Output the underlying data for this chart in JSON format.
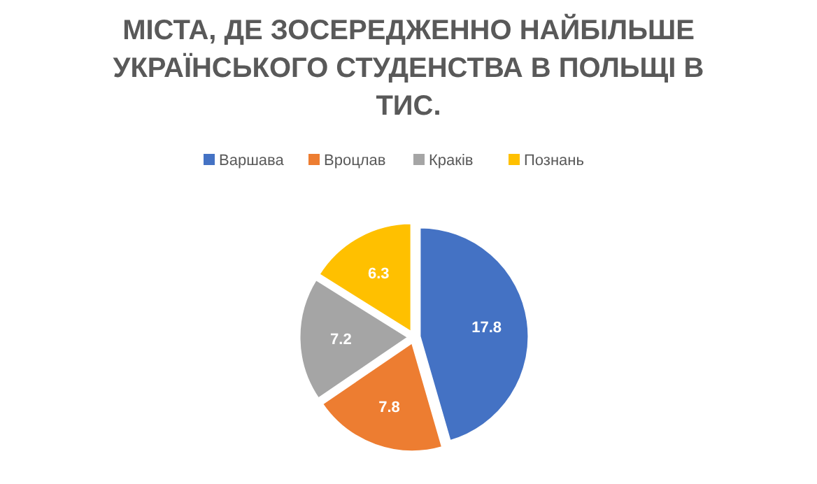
{
  "chart_data": {
    "type": "pie",
    "title": "МІСТА, ДЕ ЗОСЕРЕДЖЕННО НАЙБІЛЬШЕ УКРАЇНСЬКОГО СТУДЕНСТВА В ПОЛЬЩІ В ТИС.",
    "categories": [
      "Варшава",
      "Вроцлав",
      "Краків",
      "Познань"
    ],
    "values": [
      17.8,
      7.8,
      7.2,
      6.3
    ],
    "colors": [
      "#4472c4",
      "#ed7d31",
      "#a5a5a5",
      "#ffc000"
    ],
    "data_labels": true,
    "legend": "top"
  }
}
